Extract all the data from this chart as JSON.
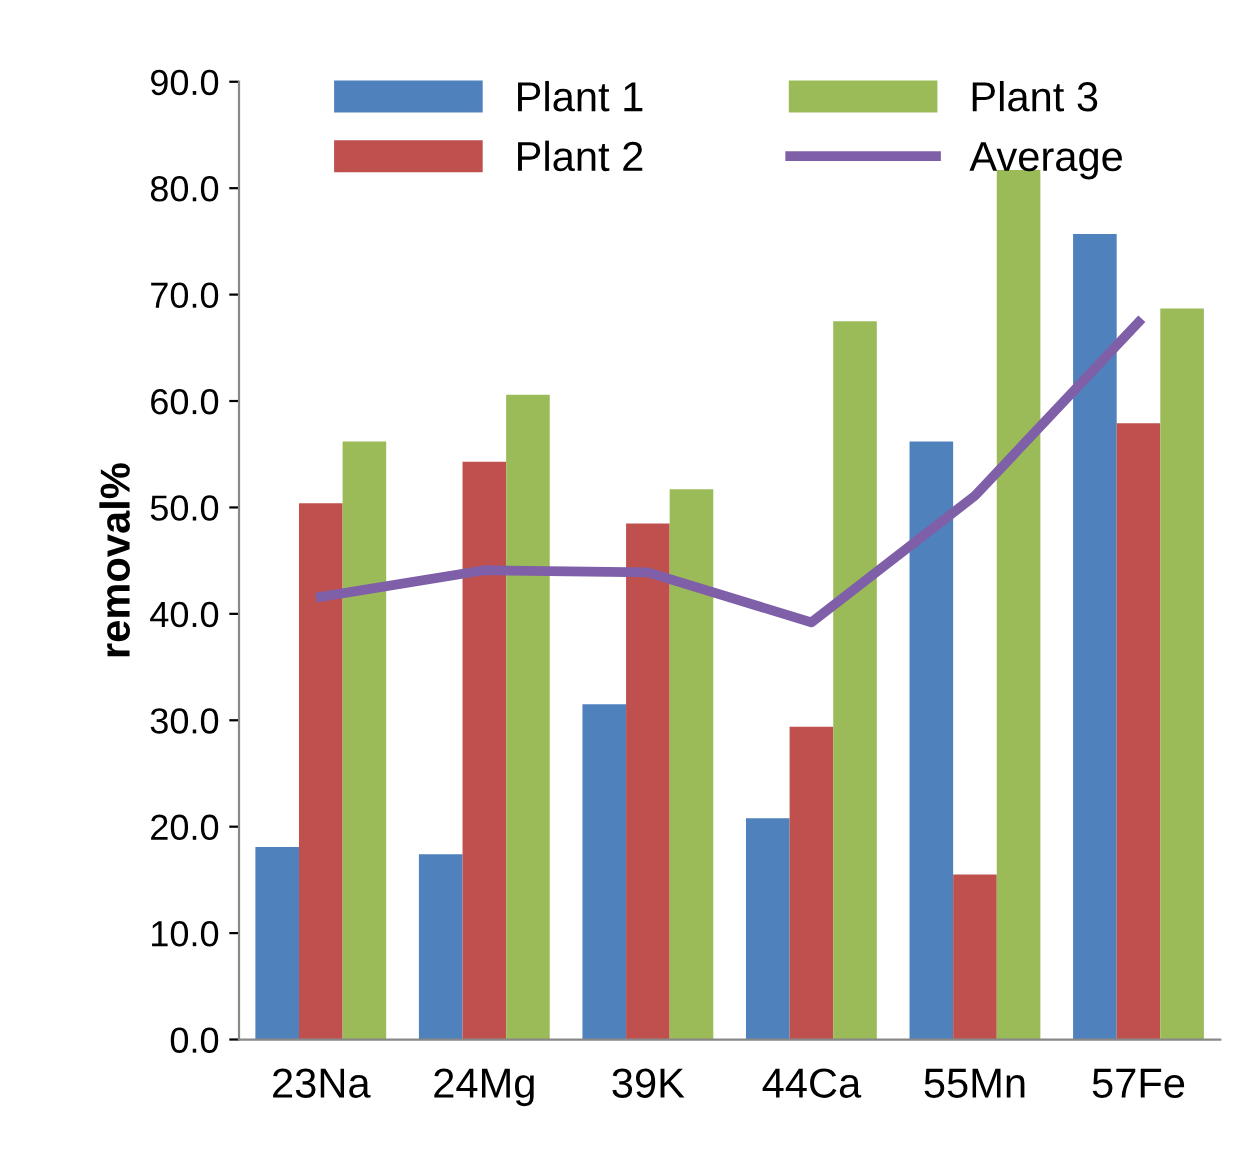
{
  "chart_data": {
    "type": "bar",
    "ylabel": "removal%",
    "categories": [
      "23Na",
      "24Mg",
      "39K",
      "44Ca",
      "55Mn",
      "57Fe"
    ],
    "series": [
      {
        "name": "Plant 1",
        "color": "#4f81bd",
        "values": [
          18.1,
          17.4,
          31.5,
          20.8,
          56.2,
          75.7
        ]
      },
      {
        "name": "Plant 2",
        "color": "#c0504d",
        "values": [
          50.4,
          54.3,
          48.5,
          29.4,
          15.5,
          57.9
        ]
      },
      {
        "name": "Plant 3",
        "color": "#9bbb59",
        "values": [
          56.2,
          60.6,
          51.7,
          67.5,
          81.7,
          68.7
        ]
      },
      {
        "name": "Average",
        "color": "#7f60a8",
        "type": "line",
        "values": [
          41.6,
          44.1,
          43.9,
          39.2,
          51.1,
          67.4
        ]
      }
    ],
    "ylim": [
      0,
      90
    ],
    "yticks": [
      {
        "value": 0,
        "label": "0.0"
      },
      {
        "value": 10,
        "label": "10.0"
      },
      {
        "value": 20,
        "label": "20.0"
      },
      {
        "value": 30,
        "label": "30.0"
      },
      {
        "value": 40,
        "label": "40.0"
      },
      {
        "value": 50,
        "label": "50.0"
      },
      {
        "value": 60,
        "label": "60.0"
      },
      {
        "value": 70,
        "label": "70.0"
      },
      {
        "value": 80,
        "label": "80.0"
      },
      {
        "value": 90,
        "label": "90.0"
      }
    ],
    "grid": false,
    "legend": "top",
    "marker": "none",
    "line_style": "solid"
  }
}
